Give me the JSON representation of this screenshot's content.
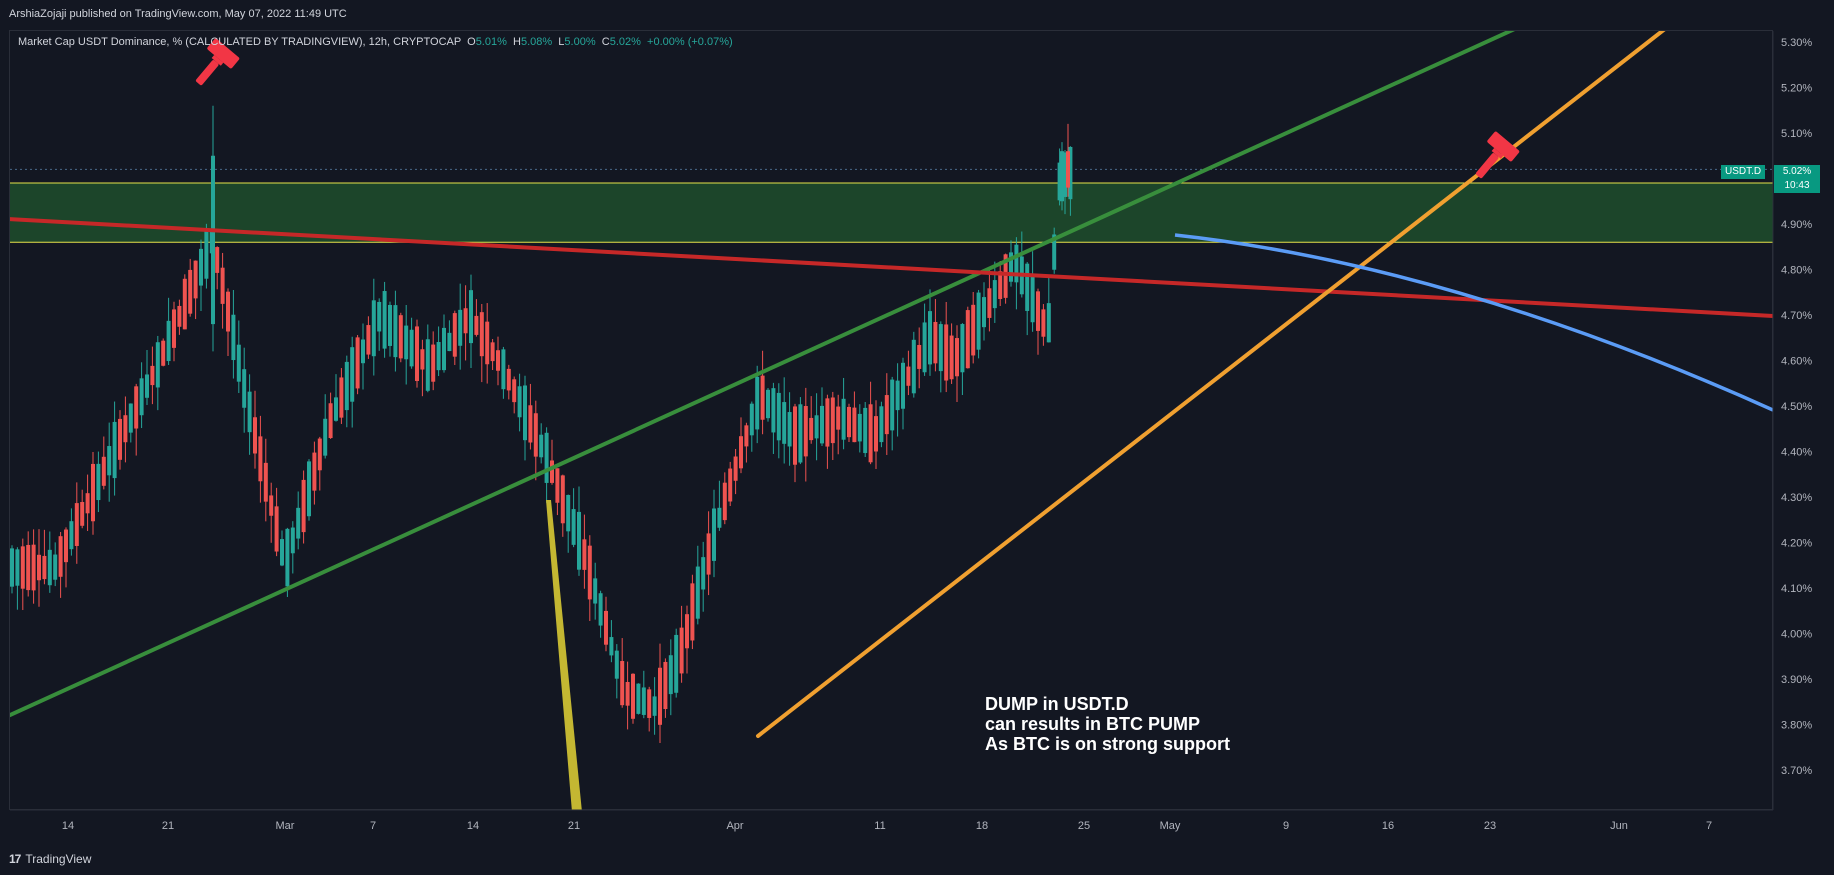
{
  "header": {
    "published": "ArshiaZojaji published on TradingView.com, May 07, 2022 11:49 UTC"
  },
  "legend": {
    "title": "Market Cap USDT Dominance, % (CALCULATED BY TRADINGVIEW), 12h, CRYPTOCAP",
    "o_label": "O",
    "o_value": "5.01%",
    "h_label": "H",
    "h_value": "5.08%",
    "l_label": "L",
    "l_value": "5.00%",
    "c_label": "C",
    "c_value": "5.02%",
    "change": "+0.00% (+0.07%)"
  },
  "price_scale": {
    "symbol": "USDT.D",
    "last_price": "5.02%",
    "countdown": "10:43"
  },
  "annotation": {
    "line1": "DUMP in USDT.D",
    "line2": "can results in BTC PUMP",
    "line3": "As BTC is on strong support"
  },
  "footer": {
    "brand": "TradingView"
  },
  "colors": {
    "up": "#26a69a",
    "down": "#ef5350",
    "background": "#131722",
    "green_line": "#388e3c",
    "red_line": "#c62828",
    "orange_line": "#f0a030",
    "blue_curve": "#5b9cf6",
    "zone_fill": "#1f4d2b",
    "zone_edge": "#e6e34a",
    "pointer": "#c4b732",
    "marker": "#f23645"
  },
  "chart_data": {
    "type": "candlestick",
    "interval": "12h",
    "ylim": [
      3.62,
      5.33
    ],
    "y_ticks": [
      "5.30%",
      "5.20%",
      "5.10%",
      "5.00%",
      "4.90%",
      "4.80%",
      "4.70%",
      "4.60%",
      "4.50%",
      "4.40%",
      "4.30%",
      "4.20%",
      "4.10%",
      "4.00%",
      "3.90%",
      "3.80%",
      "3.70%"
    ],
    "x_ticks": [
      "14",
      "21",
      "Mar",
      "7",
      "14",
      "21",
      "Apr",
      "11",
      "18",
      "25",
      "May",
      "9",
      "16",
      "23",
      "Jun",
      "7"
    ],
    "zone": {
      "low": 4.86,
      "high": 4.99
    },
    "last_price_line": 5.02,
    "anchors": [
      {
        "label": "14",
        "o": 4.12,
        "c": 4.17
      },
      {
        "label": "21",
        "o": 4.55,
        "c": 4.65
      },
      {
        "label": "24",
        "o": 4.68,
        "c": 5.05
      },
      {
        "label": "26",
        "o": 4.58,
        "c": 4.52
      },
      {
        "label": "28",
        "o": 4.5,
        "c": 4.18
      },
      {
        "label": "Mar",
        "o": 4.12,
        "c": 4.18
      },
      {
        "label": "4",
        "o": 4.35,
        "c": 4.58
      },
      {
        "label": "7",
        "o": 4.62,
        "c": 4.78
      },
      {
        "label": "10",
        "o": 4.72,
        "c": 4.45
      },
      {
        "label": "14",
        "o": 4.65,
        "c": 4.75
      },
      {
        "label": "17",
        "o": 4.65,
        "c": 4.5
      },
      {
        "label": "21",
        "o": 4.42,
        "c": 4.37
      },
      {
        "label": "24",
        "o": 4.22,
        "c": 4.12
      },
      {
        "label": "28",
        "o": 3.92,
        "c": 3.82
      },
      {
        "label": "Apr",
        "o": 3.85,
        "c": 3.83
      },
      {
        "label": "4",
        "o": 3.85,
        "c": 4.05
      },
      {
        "label": "7",
        "o": 4.15,
        "c": 4.3
      },
      {
        "label": "11",
        "o": 4.55,
        "c": 4.5
      },
      {
        "label": "14",
        "o": 4.45,
        "c": 4.42
      },
      {
        "label": "18",
        "o": 4.65,
        "c": 4.3
      },
      {
        "label": "21",
        "o": 4.35,
        "c": 4.52
      },
      {
        "label": "25",
        "o": 4.55,
        "c": 4.75
      },
      {
        "label": "28",
        "o": 4.62,
        "c": 4.58
      },
      {
        "label": "May",
        "o": 4.72,
        "c": 4.92
      },
      {
        "label": "4",
        "o": 4.72,
        "c": 4.6
      },
      {
        "label": "6",
        "o": 4.95,
        "c": 5.06
      },
      {
        "label": "7",
        "o": 5.01,
        "c": 5.02
      }
    ]
  }
}
